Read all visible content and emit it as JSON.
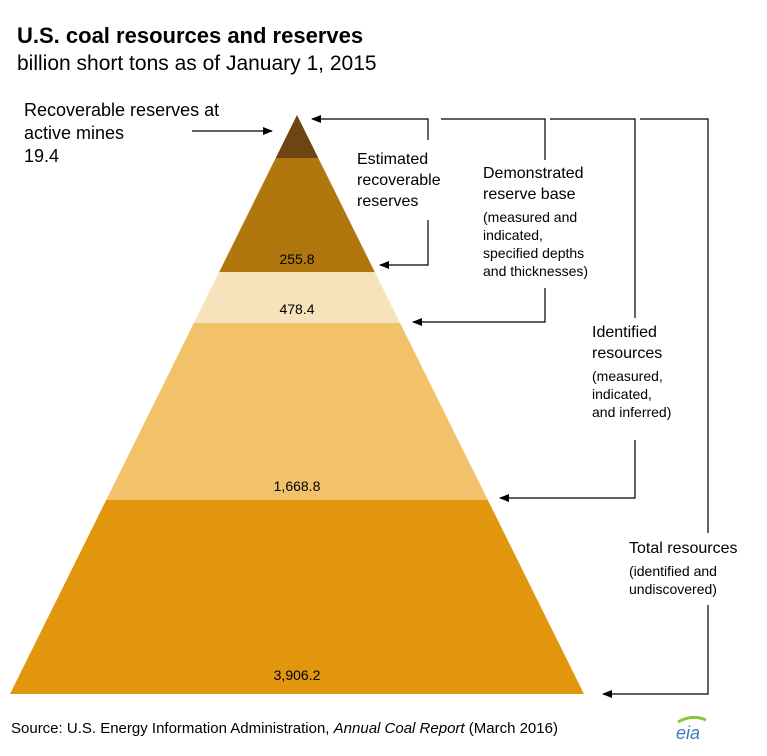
{
  "title": "U.S. coal resources and reserves",
  "subtitle": "billion short tons as of January 1, 2015",
  "pyramid": {
    "layers": [
      {
        "name": "Recoverable reserves at active mines",
        "value": 19.4,
        "value_label": "19.4",
        "color": "#6e4412"
      },
      {
        "name": "Estimated recoverable reserves",
        "value": 255.8,
        "value_label": "255.8",
        "color": "#b0770e"
      },
      {
        "name": "Demonstrated reserve base",
        "value": 478.4,
        "value_label": "478.4",
        "color": "#f7e3bb"
      },
      {
        "name": "Identified resources",
        "value": 1668.8,
        "value_label": "1,668.8",
        "color": "#f1c26a"
      },
      {
        "name": "Total resources",
        "value": 3906.2,
        "value_label": "3,906.2",
        "color": "#e1960e"
      }
    ]
  },
  "labels": {
    "active_mines_line1": "Recoverable reserves at",
    "active_mines_line2": "active mines",
    "active_mines_value": "19.4",
    "estimated_line1": "Estimated",
    "estimated_line2": "recoverable",
    "estimated_line3": "reserves",
    "demonstrated_line1": "Demonstrated",
    "demonstrated_line2": "reserve base",
    "demonstrated_sub1": "(measured and",
    "demonstrated_sub2": "indicated,",
    "demonstrated_sub3": "specified depths",
    "demonstrated_sub4": "and thicknesses)",
    "identified_line1": "Identified",
    "identified_line2": "resources",
    "identified_sub1": "(measured,",
    "identified_sub2": "indicated,",
    "identified_sub3": "and inferred)",
    "total_line1": "Total resources",
    "total_sub1": "(identified and",
    "total_sub2": "undiscovered)"
  },
  "source": {
    "prefix": "Source: U.S. Energy Information Administration, ",
    "report": "Annual Coal Report",
    "suffix": " (March 2016)"
  },
  "logo_text": "eia",
  "colors": {
    "arrow": "#000000",
    "logo_blue": "#3a7fc1",
    "logo_green": "#8cc63f"
  }
}
